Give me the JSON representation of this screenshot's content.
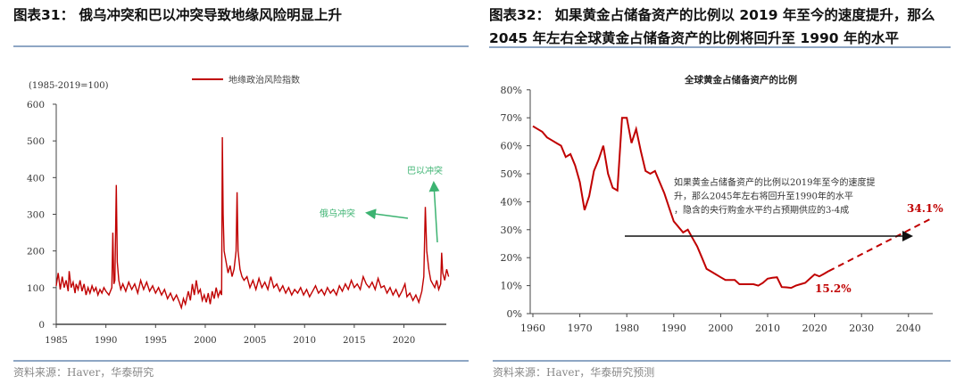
{
  "left": {
    "title": "图表31： 俄乌冲突和巴以冲突导致地缘风险明显上升",
    "source": "资料来源：Haver，华泰研究"
  },
  "right": {
    "title_line1": "图表32： 如果黄金占储备资产的比例以 2019 年至今的速度提升，那么",
    "title_line2": "2045 年左右全球黄金占储备资产的比例将回升至 1990 年的水平",
    "source": "资料来源：Haver，华泰研究预测"
  },
  "colors": {
    "series": "#c00000",
    "annotation": "#3cb371",
    "rule": "#8ea6c4",
    "arrow": "#111111"
  },
  "chart_data": [
    {
      "type": "line",
      "unit_note": "(1985-2019=100)",
      "legend": [
        "地缘政治风险指数"
      ],
      "legend_position": "top-center",
      "xlim": [
        1985,
        2024.5
      ],
      "ylim": [
        0,
        600
      ],
      "yticks": [
        "0",
        "100",
        "200",
        "300",
        "400",
        "500",
        "600"
      ],
      "yticks_values": [
        0,
        100,
        200,
        300,
        400,
        500,
        600
      ],
      "xticks": [
        "1985",
        "1990",
        "1995",
        "2000",
        "2005",
        "2010",
        "2015",
        "2020"
      ],
      "xticks_values": [
        1985,
        1990,
        1995,
        2000,
        2005,
        2010,
        2015,
        2020
      ],
      "annotations": [
        {
          "text": "俄乌冲突",
          "at": [
            2022.1,
            320
          ]
        },
        {
          "text": "巴以冲突",
          "at": [
            2023.8,
            190
          ]
        }
      ],
      "series": [
        {
          "name": "地缘政治风险指数",
          "points": [
            [
              1985,
              105
            ],
            [
              1985.2,
              140
            ],
            [
              1985.4,
              95
            ],
            [
              1985.6,
              130
            ],
            [
              1985.8,
              100
            ],
            [
              1986,
              120
            ],
            [
              1986.2,
              90
            ],
            [
              1986.3,
              145
            ],
            [
              1986.5,
              100
            ],
            [
              1986.7,
              115
            ],
            [
              1986.9,
              85
            ],
            [
              1987,
              110
            ],
            [
              1987.2,
              95
            ],
            [
              1987.4,
              120
            ],
            [
              1987.6,
              90
            ],
            [
              1987.8,
              110
            ],
            [
              1988,
              80
            ],
            [
              1988.2,
              100
            ],
            [
              1988.4,
              85
            ],
            [
              1988.6,
              105
            ],
            [
              1988.8,
              90
            ],
            [
              1989,
              100
            ],
            [
              1989.2,
              80
            ],
            [
              1989.4,
              95
            ],
            [
              1989.6,
              85
            ],
            [
              1989.8,
              100
            ],
            [
              1990,
              90
            ],
            [
              1990.3,
              80
            ],
            [
              1990.6,
              100
            ],
            [
              1990.7,
              250
            ],
            [
              1990.8,
              110
            ],
            [
              1990.9,
              120
            ],
            [
              1991.05,
              380
            ],
            [
              1991.15,
              170
            ],
            [
              1991.3,
              120
            ],
            [
              1991.5,
              95
            ],
            [
              1991.7,
              110
            ],
            [
              1992,
              90
            ],
            [
              1992.3,
              115
            ],
            [
              1992.6,
              95
            ],
            [
              1992.9,
              110
            ],
            [
              1993.2,
              85
            ],
            [
              1993.5,
              120
            ],
            [
              1993.8,
              95
            ],
            [
              1994.1,
              115
            ],
            [
              1994.4,
              90
            ],
            [
              1994.7,
              105
            ],
            [
              1995,
              85
            ],
            [
              1995.3,
              100
            ],
            [
              1995.6,
              80
            ],
            [
              1995.9,
              95
            ],
            [
              1996.2,
              70
            ],
            [
              1996.5,
              85
            ],
            [
              1996.8,
              65
            ],
            [
              1997.1,
              80
            ],
            [
              1997.4,
              60
            ],
            [
              1997.6,
              45
            ],
            [
              1997.8,
              70
            ],
            [
              1998,
              55
            ],
            [
              1998.3,
              90
            ],
            [
              1998.5,
              65
            ],
            [
              1998.7,
              110
            ],
            [
              1998.9,
              80
            ],
            [
              1999.1,
              120
            ],
            [
              1999.3,
              85
            ],
            [
              1999.5,
              95
            ],
            [
              1999.7,
              65
            ],
            [
              1999.9,
              80
            ],
            [
              2000.1,
              60
            ],
            [
              2000.3,
              85
            ],
            [
              2000.5,
              55
            ],
            [
              2000.7,
              90
            ],
            [
              2000.9,
              70
            ],
            [
              2001.1,
              100
            ],
            [
              2001.3,
              75
            ],
            [
              2001.5,
              90
            ],
            [
              2001.65,
              80
            ],
            [
              2001.72,
              510
            ],
            [
              2001.8,
              300
            ],
            [
              2001.9,
              200
            ],
            [
              2002.1,
              170
            ],
            [
              2002.3,
              140
            ],
            [
              2002.5,
              160
            ],
            [
              2002.7,
              130
            ],
            [
              2002.9,
              150
            ],
            [
              2003.1,
              200
            ],
            [
              2003.2,
              360
            ],
            [
              2003.3,
              200
            ],
            [
              2003.5,
              150
            ],
            [
              2003.7,
              130
            ],
            [
              2003.9,
              120
            ],
            [
              2004.2,
              130
            ],
            [
              2004.5,
              100
            ],
            [
              2004.8,
              120
            ],
            [
              2005.1,
              95
            ],
            [
              2005.4,
              125
            ],
            [
              2005.7,
              100
            ],
            [
              2006,
              115
            ],
            [
              2006.3,
              95
            ],
            [
              2006.6,
              130
            ],
            [
              2006.9,
              100
            ],
            [
              2007.2,
              110
            ],
            [
              2007.5,
              90
            ],
            [
              2007.8,
              105
            ],
            [
              2008.1,
              85
            ],
            [
              2008.4,
              100
            ],
            [
              2008.7,
              80
            ],
            [
              2009,
              95
            ],
            [
              2009.3,
              85
            ],
            [
              2009.6,
              100
            ],
            [
              2009.9,
              80
            ],
            [
              2010.2,
              95
            ],
            [
              2010.5,
              75
            ],
            [
              2010.8,
              90
            ],
            [
              2011.1,
              105
            ],
            [
              2011.4,
              85
            ],
            [
              2011.7,
              95
            ],
            [
              2012,
              80
            ],
            [
              2012.3,
              100
            ],
            [
              2012.6,
              85
            ],
            [
              2012.9,
              95
            ],
            [
              2013.2,
              80
            ],
            [
              2013.5,
              105
            ],
            [
              2013.8,
              90
            ],
            [
              2014.1,
              110
            ],
            [
              2014.4,
              95
            ],
            [
              2014.7,
              120
            ],
            [
              2015,
              100
            ],
            [
              2015.3,
              110
            ],
            [
              2015.6,
              95
            ],
            [
              2015.9,
              130
            ],
            [
              2016.2,
              110
            ],
            [
              2016.5,
              100
            ],
            [
              2016.8,
              115
            ],
            [
              2017.1,
              95
            ],
            [
              2017.4,
              125
            ],
            [
              2017.7,
              100
            ],
            [
              2018,
              105
            ],
            [
              2018.3,
              85
            ],
            [
              2018.6,
              100
            ],
            [
              2018.9,
              80
            ],
            [
              2019.2,
              95
            ],
            [
              2019.5,
              75
            ],
            [
              2019.8,
              90
            ],
            [
              2020.1,
              110
            ],
            [
              2020.3,
              75
            ],
            [
              2020.6,
              85
            ],
            [
              2020.9,
              65
            ],
            [
              2021.2,
              80
            ],
            [
              2021.5,
              60
            ],
            [
              2021.8,
              90
            ],
            [
              2022.0,
              130
            ],
            [
              2022.15,
              320
            ],
            [
              2022.3,
              200
            ],
            [
              2022.5,
              150
            ],
            [
              2022.7,
              120
            ],
            [
              2022.9,
              110
            ],
            [
              2023.1,
              100
            ],
            [
              2023.3,
              120
            ],
            [
              2023.5,
              95
            ],
            [
              2023.7,
              110
            ],
            [
              2023.8,
              195
            ],
            [
              2023.9,
              140
            ],
            [
              2024.1,
              120
            ],
            [
              2024.3,
              150
            ],
            [
              2024.5,
              130
            ]
          ]
        }
      ]
    },
    {
      "type": "line",
      "title": "全球黄金占储备资产的比例",
      "xlim": [
        1960,
        2045
      ],
      "ylim": [
        0,
        80
      ],
      "yticks": [
        "0%",
        "10%",
        "20%",
        "30%",
        "40%",
        "50%",
        "60%",
        "70%",
        "80%"
      ],
      "yticks_values": [
        0,
        10,
        20,
        30,
        40,
        50,
        60,
        70,
        80
      ],
      "xticks": [
        "1960",
        "1970",
        "1980",
        "1990",
        "2000",
        "2010",
        "2020",
        "2030",
        "2040"
      ],
      "xticks_values": [
        1960,
        1970,
        1980,
        1990,
        2000,
        2010,
        2020,
        2030,
        2040
      ],
      "annotation_text": "如果黄金占储备资产的比例以2019年至今的速度提升，那么2045年左右将回升至1990年的水平，隐含的央行购金水平约占预期供应的3-4成",
      "labels": [
        {
          "text": "15.2%",
          "x": 2023,
          "y": 15.2
        },
        {
          "text": "34.1%",
          "x": 2045,
          "y": 34.1
        }
      ],
      "series": [
        {
          "name": "actual",
          "values": [
            [
              1960,
              67
            ],
            [
              1961,
              66
            ],
            [
              1962,
              65
            ],
            [
              1963,
              63
            ],
            [
              1964,
              62
            ],
            [
              1965,
              61
            ],
            [
              1966,
              60
            ],
            [
              1967,
              56
            ],
            [
              1968,
              57
            ],
            [
              1969,
              53
            ],
            [
              1970,
              47
            ],
            [
              1971,
              37
            ],
            [
              1972,
              42
            ],
            [
              1973,
              51
            ],
            [
              1974,
              55
            ],
            [
              1975,
              60
            ],
            [
              1976,
              50
            ],
            [
              1977,
              45
            ],
            [
              1978,
              44
            ],
            [
              1979,
              70
            ],
            [
              1980,
              70
            ],
            [
              1981,
              61
            ],
            [
              1982,
              66
            ],
            [
              1983,
              58
            ],
            [
              1984,
              51
            ],
            [
              1985,
              50
            ],
            [
              1986,
              51
            ],
            [
              1987,
              47
            ],
            [
              1988,
              43
            ],
            [
              1989,
              38
            ],
            [
              1990,
              33
            ],
            [
              1991,
              31
            ],
            [
              1992,
              29
            ],
            [
              1993,
              30
            ],
            [
              1994,
              27
            ],
            [
              1995,
              24
            ],
            [
              1996,
              20
            ],
            [
              1997,
              16
            ],
            [
              1998,
              15
            ],
            [
              1999,
              14
            ],
            [
              2000,
              13
            ],
            [
              2001,
              12
            ],
            [
              2002,
              12
            ],
            [
              2003,
              12
            ],
            [
              2004,
              10.5
            ],
            [
              2005,
              10.5
            ],
            [
              2006,
              10.5
            ],
            [
              2007,
              10.5
            ],
            [
              2008,
              10
            ],
            [
              2009,
              11
            ],
            [
              2010,
              12.5
            ],
            [
              2011,
              12.8
            ],
            [
              2012,
              13
            ],
            [
              2013,
              9.5
            ],
            [
              2014,
              9.4
            ],
            [
              2015,
              9.2
            ],
            [
              2016,
              10
            ],
            [
              2017,
              10.5
            ],
            [
              2018,
              11
            ],
            [
              2019,
              12.5
            ],
            [
              2020,
              14
            ],
            [
              2021,
              13.3
            ],
            [
              2022,
              14.2
            ],
            [
              2023,
              15.2
            ]
          ]
        },
        {
          "name": "projection",
          "dashed": true,
          "values": [
            [
              2023,
              15.2
            ],
            [
              2045,
              34.1
            ]
          ]
        }
      ]
    }
  ]
}
